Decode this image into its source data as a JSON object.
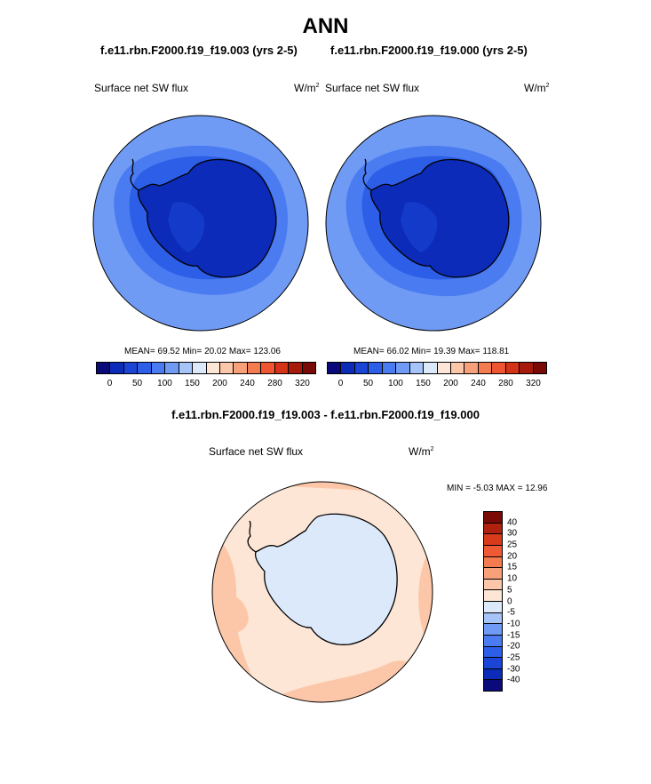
{
  "title": "ANN",
  "panels": [
    {
      "case": "f.e11.rbn.F2000.f19_f19.003 (yrs 2-5)",
      "variable": "Surface net SW flux",
      "units": "W/m",
      "units_exp": "2",
      "mean_label": "MEAN=",
      "mean": "69.52",
      "min_label": "Min=",
      "min": "20.02",
      "max_label": "Max=",
      "max": "123.06"
    },
    {
      "case": "f.e11.rbn.F2000.f19_f19.000 (yrs 2-5)",
      "variable": "Surface net SW flux",
      "units": "W/m",
      "units_exp": "2",
      "mean_label": "MEAN=",
      "mean": "66.02",
      "min_label": "Min=",
      "min": "19.39",
      "max_label": "Max=",
      "max": "118.81"
    }
  ],
  "abs_colorbar": {
    "colors": [
      "#0a0a7a",
      "#0b2bb8",
      "#1a45d6",
      "#2d5ee8",
      "#4a7bf0",
      "#6f9bf5",
      "#a6c4f8",
      "#dbe9fb",
      "#fde6d6",
      "#fbc7a8",
      "#f8a07a",
      "#f47a50",
      "#ee5530",
      "#d53318",
      "#a51a0a",
      "#7a0a05"
    ],
    "labels": [
      "0",
      "50",
      "100",
      "150",
      "200",
      "240",
      "280",
      "320"
    ]
  },
  "diff": {
    "title": "f.e11.rbn.F2000.f19_f19.003 - f.e11.rbn.F2000.f19_f19.000",
    "variable": "Surface net SW flux",
    "units": "W/m",
    "units_exp": "2",
    "min_label": "MIN =",
    "min": "-5.03",
    "max_label": "MAX =",
    "max": "12.96",
    "colorbar": {
      "colors": [
        "#7a0a05",
        "#b0220d",
        "#d83a1c",
        "#ef5a35",
        "#f47a50",
        "#f8a07a",
        "#fbc7a8",
        "#fde6d6",
        "#dbe9fb",
        "#a6c4f8",
        "#6f9bf5",
        "#4a7bf0",
        "#2d5ee8",
        "#1a45d6",
        "#0b2bb8",
        "#0a0a7a"
      ],
      "labels": [
        "40",
        "30",
        "25",
        "20",
        "15",
        "10",
        "5",
        "0",
        "-5",
        "-10",
        "-15",
        "-20",
        "-25",
        "-30",
        "-40"
      ]
    }
  },
  "colors": {
    "ocean_outer": "#6f9bf5",
    "ocean_mid": "#4a7bf0",
    "ocean_inner": "#2d5ee8",
    "ice": "#1a45d6",
    "land": "#0b2bb8",
    "land_deep": "#0b2bb8",
    "diff_ocean": "#fde6d6",
    "diff_warm": "#fbc7a8",
    "diff_land": "#dbe9fb"
  }
}
